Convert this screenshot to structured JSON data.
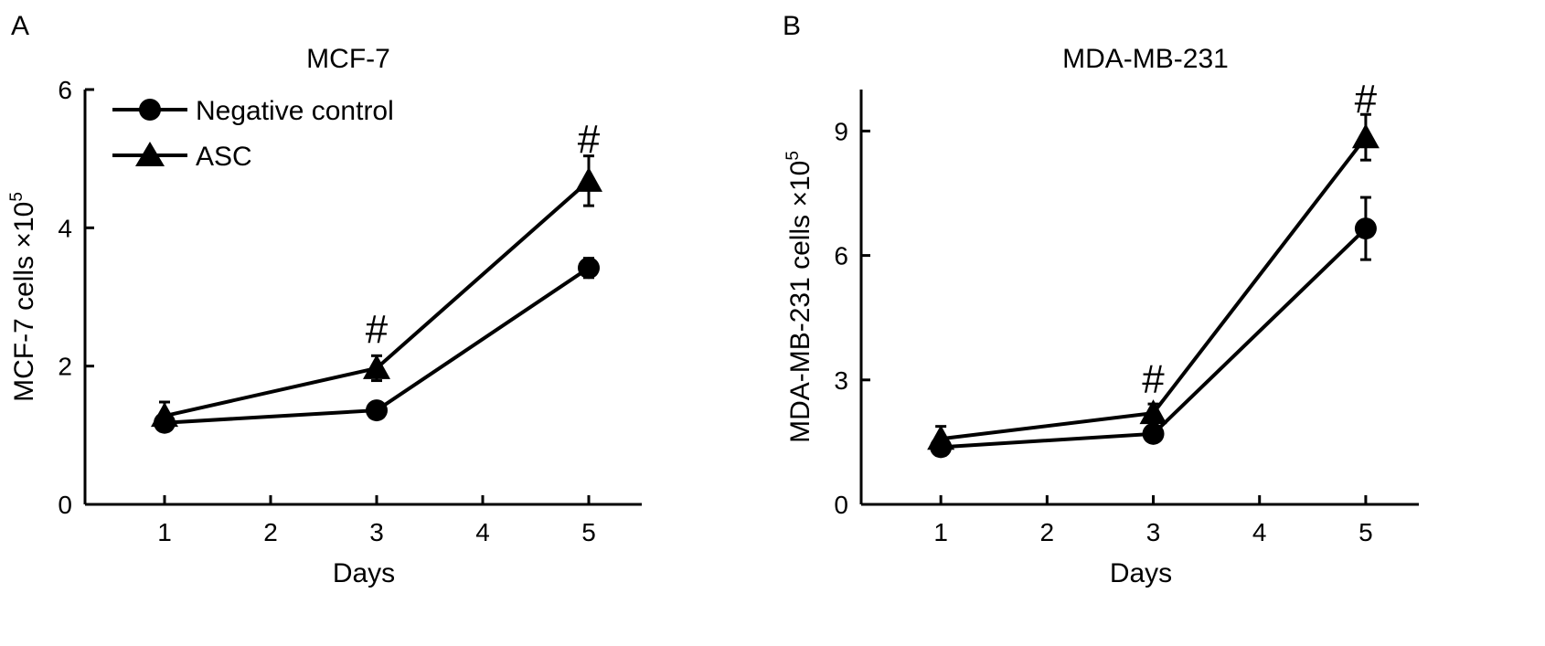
{
  "chart_data": [
    {
      "panel_label": "A",
      "type": "line",
      "title": "MCF-7",
      "xlabel": "Days",
      "ylabel": "MCF-7 cells ×10",
      "ylabel_sup": "5",
      "x": [
        1,
        3,
        5
      ],
      "xticks": [
        "1",
        "2",
        "3",
        "4",
        "5"
      ],
      "xlim": [
        0.25,
        5.5
      ],
      "ylim": [
        0,
        6
      ],
      "yticks": [
        "0",
        "2",
        "4",
        "6"
      ],
      "legend_position": "top-left",
      "series": [
        {
          "name": "Negative control",
          "marker": "circle",
          "values": [
            1.18,
            1.36,
            3.42
          ],
          "errors": [
            0.12,
            0.1,
            0.14
          ]
        },
        {
          "name": "ASC",
          "marker": "triangle",
          "values": [
            1.28,
            1.97,
            4.68
          ],
          "errors": [
            0.2,
            0.18,
            0.36
          ]
        }
      ],
      "annotations": [
        {
          "text": "#",
          "x": 3,
          "y": 2.55
        },
        {
          "text": "#",
          "x": 5,
          "y": 5.3
        }
      ]
    },
    {
      "panel_label": "B",
      "type": "line",
      "title": "MDA-MB-231",
      "xlabel": "Days",
      "ylabel": "MDA-MB-231 cells ×10",
      "ylabel_sup": "5",
      "x": [
        1,
        3,
        5
      ],
      "xticks": [
        "1",
        "2",
        "3",
        "4",
        "5"
      ],
      "xlim": [
        0.25,
        5.5
      ],
      "ylim": [
        0,
        10
      ],
      "yticks": [
        "0",
        "3",
        "6",
        "9"
      ],
      "legend_position": "none",
      "series": [
        {
          "name": "Negative control",
          "marker": "circle",
          "values": [
            1.38,
            1.7,
            6.65
          ],
          "errors": [
            0.2,
            0.15,
            0.75
          ]
        },
        {
          "name": "ASC",
          "marker": "triangle",
          "values": [
            1.58,
            2.2,
            8.85
          ],
          "errors": [
            0.3,
            0.22,
            0.55
          ]
        }
      ],
      "annotations": [
        {
          "text": "#",
          "x": 3,
          "y": 3.05
        },
        {
          "text": "#",
          "x": 5,
          "y": 9.8
        }
      ]
    }
  ]
}
